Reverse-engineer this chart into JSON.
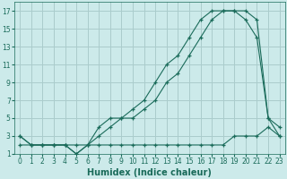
{
  "title": "",
  "xlabel": "Humidex (Indice chaleur)",
  "ylabel": "",
  "background_color": "#cceaea",
  "grid_color": "#aacccc",
  "line_color": "#1a6b5a",
  "line1_x": [
    0,
    1,
    2,
    3,
    4,
    5,
    6,
    7,
    8,
    9,
    10,
    11,
    12,
    13,
    14,
    15,
    16,
    17,
    18,
    19,
    20,
    21,
    22,
    23
  ],
  "line1_y": [
    3,
    2,
    2,
    2,
    2,
    1,
    2,
    4,
    5,
    5,
    6,
    7,
    9,
    11,
    12,
    14,
    16,
    17,
    17,
    17,
    16,
    14,
    5,
    4
  ],
  "line2_x": [
    0,
    1,
    2,
    3,
    4,
    5,
    6,
    7,
    8,
    9,
    10,
    11,
    12,
    13,
    14,
    15,
    16,
    17,
    18,
    19,
    20,
    21,
    22,
    23
  ],
  "line2_y": [
    3,
    2,
    2,
    2,
    2,
    1,
    2,
    3,
    4,
    5,
    5,
    6,
    7,
    9,
    10,
    12,
    14,
    16,
    17,
    17,
    17,
    16,
    5,
    3
  ],
  "line3_x": [
    0,
    1,
    2,
    3,
    4,
    5,
    6,
    7,
    8,
    9,
    10,
    11,
    12,
    13,
    14,
    15,
    16,
    17,
    18,
    19,
    20,
    21,
    22,
    23
  ],
  "line3_y": [
    2,
    2,
    2,
    2,
    2,
    2,
    2,
    2,
    2,
    2,
    2,
    2,
    2,
    2,
    2,
    2,
    2,
    2,
    2,
    3,
    3,
    3,
    4,
    3
  ],
  "xlim": [
    -0.5,
    23.5
  ],
  "ylim": [
    1,
    18
  ],
  "xticks": [
    0,
    1,
    2,
    3,
    4,
    5,
    6,
    7,
    8,
    9,
    10,
    11,
    12,
    13,
    14,
    15,
    16,
    17,
    18,
    19,
    20,
    21,
    22,
    23
  ],
  "yticks": [
    1,
    3,
    5,
    7,
    9,
    11,
    13,
    15,
    17
  ],
  "tick_fontsize": 5.5,
  "xlabel_fontsize": 7
}
